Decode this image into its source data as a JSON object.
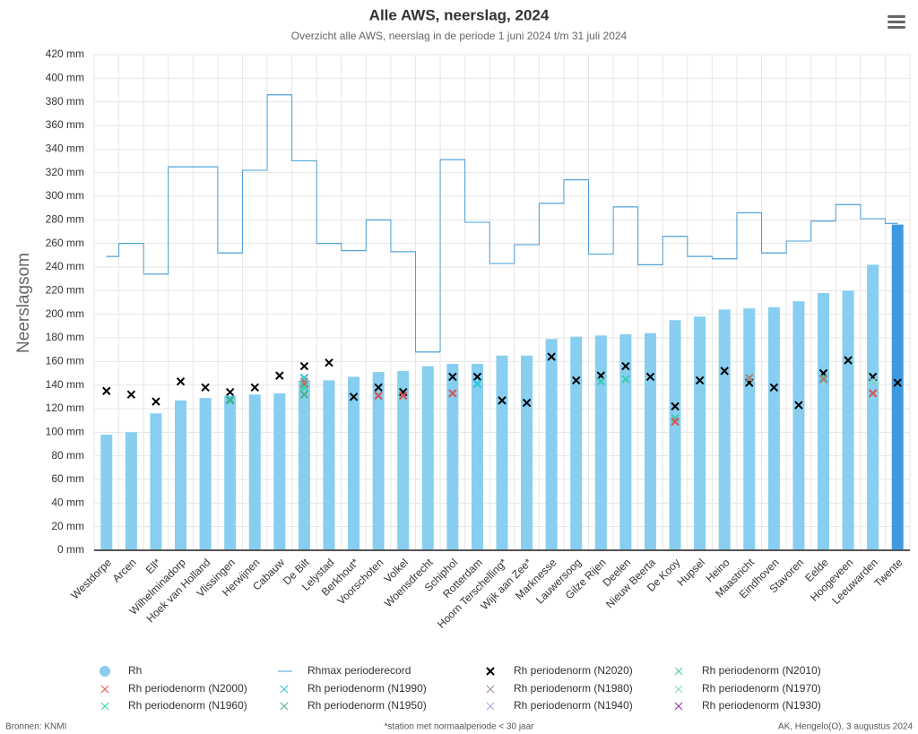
{
  "chart_data": {
    "type": "combo",
    "title": "Alle AWS, neerslag, 2024",
    "subtitle": "Overzicht alle AWS, neerslag in de periode 1 juni 2024 t/m 31 juli 2024",
    "y_label": "Neerslagsom",
    "credits_left": "Bronnen: KNMI",
    "credits_center": "*station met normaalperiode < 30 jaar",
    "credits_right": "AK, Hengelo(O), 3 augustus 2024",
    "categories": [
      "Westdorpe",
      "Arcen",
      "Ell*",
      "Wilhelminadorp",
      "Hoek van Holland",
      "Vlissingen",
      "Herwijnen",
      "Cabauw",
      "De Bilt",
      "Lelystad",
      "Berkhout*",
      "Voorschoten",
      "Volkel",
      "Woensdrecht",
      "Schiphol",
      "Rotterdam",
      "Hoorn Terschelling*",
      "Wijk aan Zee*",
      "Marknesse",
      "Lauwersoog",
      "Gilze Rijen",
      "Deelen",
      "Nieuw Beerta",
      "De Kooy",
      "Hupsel",
      "Heino",
      "Maastricht",
      "Eindhoven",
      "Stavoren",
      "Eelde",
      "Hoogeveen",
      "Leeuwarden",
      "Twente"
    ],
    "ylim": [
      0,
      420
    ],
    "yticks": [
      {
        "value": 0,
        "label": "0 mm"
      },
      {
        "value": 20,
        "label": "20 mm"
      },
      {
        "value": 40,
        "label": "40 mm"
      },
      {
        "value": 60,
        "label": "60 mm"
      },
      {
        "value": 80,
        "label": "80 mm"
      },
      {
        "value": 100,
        "label": "100 mm"
      },
      {
        "value": 120,
        "label": "120 mm"
      },
      {
        "value": 140,
        "label": "140 mm"
      },
      {
        "value": 160,
        "label": "160 mm"
      },
      {
        "value": 180,
        "label": "180 mm"
      },
      {
        "value": 200,
        "label": "200 mm"
      },
      {
        "value": 220,
        "label": "220 mm"
      },
      {
        "value": 240,
        "label": "240 mm"
      },
      {
        "value": 260,
        "label": "260 mm"
      },
      {
        "value": 280,
        "label": "280 mm"
      },
      {
        "value": 300,
        "label": "300 mm"
      },
      {
        "value": 320,
        "label": "320 mm"
      },
      {
        "value": 340,
        "label": "340 mm"
      },
      {
        "value": 360,
        "label": "360 mm"
      },
      {
        "value": 380,
        "label": "380 mm"
      },
      {
        "value": 400,
        "label": "400 mm"
      },
      {
        "value": 420,
        "label": "420 mm"
      }
    ],
    "grid": true,
    "series": [
      {
        "name": "Rh",
        "kind": "bar",
        "color": "#87cef0",
        "colors": [
          null,
          null,
          null,
          null,
          null,
          null,
          null,
          null,
          null,
          null,
          null,
          null,
          null,
          null,
          null,
          null,
          null,
          null,
          null,
          null,
          null,
          null,
          null,
          null,
          null,
          null,
          null,
          null,
          null,
          null,
          null,
          null,
          "#3d9ae0"
        ],
        "values": [
          98,
          100,
          116,
          127,
          129,
          131,
          132,
          133,
          144,
          144,
          147,
          151,
          152,
          156,
          158,
          158,
          165,
          165,
          179,
          181,
          182,
          183,
          184,
          195,
          198,
          204,
          205,
          206,
          211,
          218,
          220,
          242,
          276
        ]
      },
      {
        "name": "Rhmax periode­record",
        "kind": "step",
        "color": "#4a9fd8",
        "values": [
          249,
          260,
          234,
          325,
          325,
          252,
          322,
          386,
          330,
          260,
          254,
          280,
          253,
          168,
          331,
          278,
          243,
          259,
          294,
          314,
          251,
          291,
          242,
          266,
          249,
          247,
          286,
          252,
          262,
          279,
          293,
          281,
          277
        ]
      },
      {
        "name": "Rh periodenorm (N2020)",
        "kind": "cross",
        "color": "#000000",
        "values": [
          135,
          132,
          126,
          143,
          138,
          134,
          138,
          148,
          156,
          159,
          130,
          138,
          134,
          null,
          147,
          147,
          127,
          125,
          164,
          144,
          148,
          156,
          147,
          122,
          144,
          152,
          142,
          138,
          123,
          150,
          161,
          147,
          142
        ]
      },
      {
        "name": "Rh periodenorm (N2010)",
        "kind": "cross",
        "color": "#3cc9b4",
        "values": [
          null,
          null,
          null,
          null,
          null,
          null,
          null,
          null,
          null,
          null,
          null,
          null,
          null,
          null,
          null,
          null,
          null,
          null,
          null,
          null,
          143,
          145,
          null,
          112,
          null,
          null,
          null,
          null,
          null,
          146,
          null,
          null,
          null
        ]
      },
      {
        "name": "Rh periodenorm (N2000)",
        "kind": "cross",
        "color": "#d9534f",
        "values": [
          null,
          null,
          null,
          null,
          null,
          null,
          null,
          null,
          141,
          null,
          null,
          131,
          131,
          null,
          133,
          null,
          null,
          null,
          null,
          null,
          null,
          null,
          null,
          109,
          null,
          null,
          null,
          null,
          null,
          145,
          null,
          133,
          null
        ]
      },
      {
        "name": "Rh periodenorm (N1990)",
        "kind": "cross",
        "color": "#26c6da",
        "values": [
          null,
          null,
          null,
          null,
          null,
          128,
          null,
          null,
          146,
          null,
          null,
          null,
          null,
          null,
          null,
          141,
          null,
          null,
          null,
          null,
          null,
          null,
          null,
          null,
          null,
          null,
          null,
          null,
          null,
          null,
          null,
          null,
          null
        ]
      },
      {
        "name": "Rh periodenorm (N1980)",
        "kind": "cross",
        "color": "#a1887f",
        "values": [
          null,
          null,
          null,
          null,
          null,
          null,
          null,
          null,
          143,
          null,
          null,
          null,
          null,
          null,
          null,
          null,
          null,
          null,
          null,
          null,
          null,
          null,
          null,
          null,
          null,
          null,
          146,
          null,
          null,
          145,
          null,
          null,
          null
        ]
      },
      {
        "name": "Rh periodenorm (N1970)",
        "kind": "cross",
        "color": "#7fd8c4",
        "values": [
          null,
          null,
          null,
          null,
          null,
          null,
          null,
          null,
          null,
          null,
          null,
          null,
          null,
          null,
          null,
          null,
          null,
          null,
          null,
          null,
          null,
          null,
          null,
          null,
          null,
          null,
          null,
          null,
          null,
          null,
          null,
          143,
          null
        ]
      },
      {
        "name": "Rh periodenorm (N1960)",
        "kind": "cross",
        "color": "#2dd4a0",
        "values": [
          null,
          null,
          null,
          null,
          null,
          null,
          null,
          null,
          138,
          null,
          null,
          null,
          null,
          null,
          null,
          null,
          null,
          null,
          null,
          null,
          null,
          null,
          null,
          null,
          null,
          null,
          null,
          null,
          null,
          null,
          null,
          null,
          null
        ]
      },
      {
        "name": "Rh periodenorm (N1950)",
        "kind": "cross",
        "color": "#4caf84",
        "values": [
          null,
          null,
          null,
          null,
          null,
          127,
          null,
          null,
          132,
          null,
          null,
          null,
          null,
          null,
          null,
          null,
          null,
          null,
          null,
          null,
          null,
          null,
          null,
          null,
          null,
          null,
          null,
          null,
          null,
          null,
          null,
          null,
          null
        ]
      },
      {
        "name": "Rh periodenorm (N1940)",
        "kind": "cross",
        "color": "#9fa8f0",
        "values": [
          null,
          null,
          null,
          null,
          null,
          null,
          null,
          null,
          null,
          null,
          null,
          null,
          null,
          null,
          null,
          null,
          null,
          null,
          null,
          null,
          null,
          null,
          null,
          null,
          null,
          null,
          null,
          null,
          null,
          null,
          null,
          null,
          null
        ]
      },
      {
        "name": "Rh periodenorm (N1930)",
        "kind": "cross",
        "color": "#9c27b0",
        "values": [
          null,
          null,
          null,
          null,
          null,
          null,
          null,
          null,
          null,
          null,
          null,
          null,
          null,
          null,
          null,
          null,
          null,
          null,
          null,
          null,
          null,
          null,
          null,
          null,
          null,
          null,
          null,
          null,
          null,
          null,
          null,
          null,
          null
        ]
      }
    ]
  }
}
